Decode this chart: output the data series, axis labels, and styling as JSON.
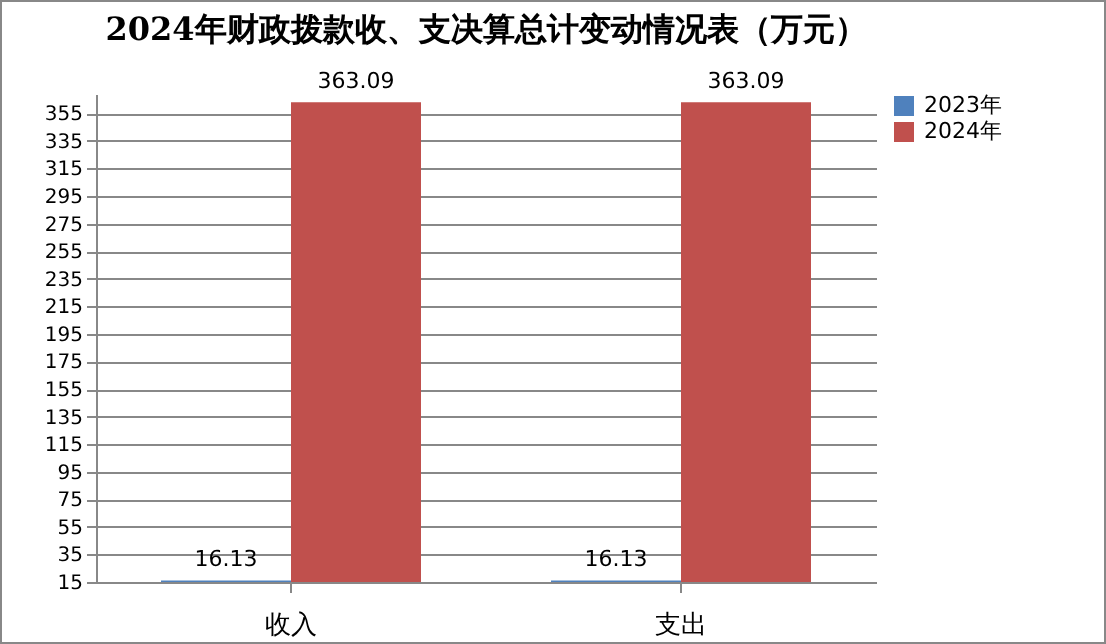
{
  "chart_data": {
    "type": "bar",
    "title": "2024年财政拨款收、支决算总计变动情况表（万元）",
    "categories": [
      "收入",
      "支出"
    ],
    "series": [
      {
        "name": "2023年",
        "color": "#4f81bd",
        "values": [
          16.13,
          16.13
        ]
      },
      {
        "name": "2024年",
        "color": "#c0504d",
        "values": [
          363.09,
          363.09
        ]
      }
    ],
    "ylim": [
      15,
      369
    ],
    "yticks": [
      15,
      35,
      55,
      75,
      95,
      115,
      135,
      155,
      175,
      195,
      215,
      235,
      255,
      275,
      295,
      315,
      335,
      355
    ],
    "grid": "y",
    "legend": "right",
    "data_labels": true
  }
}
